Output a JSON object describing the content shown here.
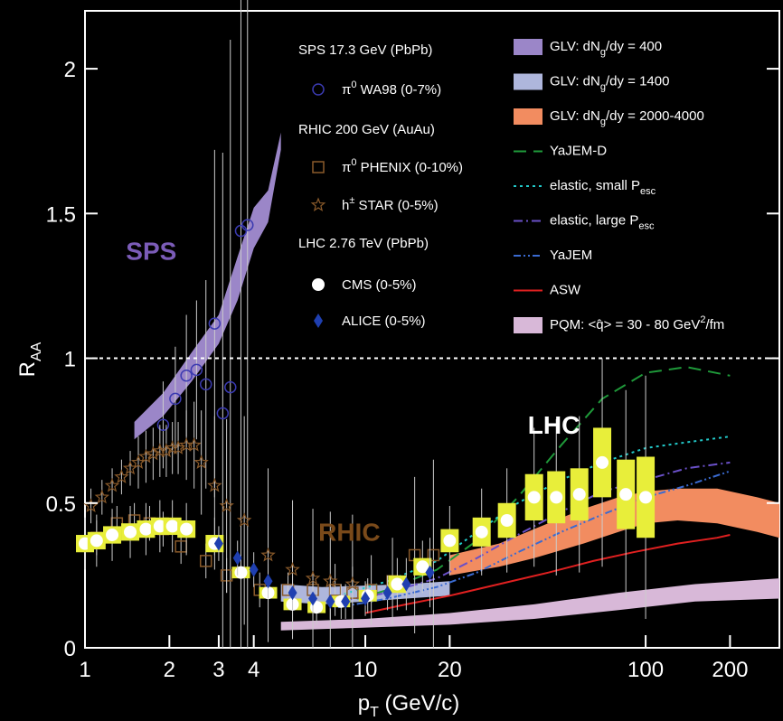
{
  "chart_data": {
    "type": "scatter",
    "xlabel": "p",
    "xlabel_sub": "T",
    "xlabel_unit": " (GeV/c)",
    "ylabel": "R",
    "ylabel_sub": "AA",
    "x_scale": "log",
    "xlim": [
      1,
      300
    ],
    "ylim": [
      0,
      2.2
    ],
    "x_ticks": [
      1,
      2,
      3,
      4,
      10,
      20,
      100,
      200
    ],
    "y_ticks": [
      0,
      0.5,
      1,
      1.5,
      2
    ],
    "y_tick_labels": [
      "0",
      "0.5",
      "1",
      "1.5",
      "2"
    ],
    "reference_line": 1,
    "region_labels": {
      "sps": {
        "text": "SPS",
        "color": "#7b5cb8",
        "x": 1.4,
        "y": 1.34
      },
      "rhic": {
        "text": "RHIC",
        "color": "#7a4a1a",
        "x": 6.8,
        "y": 0.37
      },
      "lhc": {
        "text": "LHC",
        "color": "#ffffff",
        "x": 38,
        "y": 0.74
      }
    },
    "legend_left": {
      "headers": [
        "SPS 17.3 GeV (PbPb)",
        "RHIC 200 GeV (AuAu)",
        "LHC 2.76 TeV (PbPb)"
      ],
      "entries": [
        {
          "label": "π",
          "sup": "0",
          "rest": "  WA98 (0-7%)"
        },
        {
          "label": "π",
          "sup": "0",
          "rest": "  PHENIX (0-10%)"
        },
        {
          "label": "h",
          "sup": "±",
          "rest": "  STAR (0-5%)"
        },
        {
          "label": "CMS (0-5%)",
          "sup": "",
          "rest": ""
        },
        {
          "label": "ALICE (0-5%)",
          "sup": "",
          "rest": ""
        }
      ]
    },
    "legend_right": [
      {
        "pre": "GLV: dN",
        "sub": "g",
        "post": "/dy = 400",
        "color": "#9b86c8",
        "kind": "band"
      },
      {
        "pre": "GLV: dN",
        "sub": "g",
        "post": "/dy = 1400",
        "color": "#aeb6dc",
        "kind": "band"
      },
      {
        "pre": "GLV: dN",
        "sub": "g",
        "post": "/dy = 2000-4000",
        "color": "#f28c60",
        "kind": "band"
      },
      {
        "pre": "YaJEM-D",
        "sub": "",
        "post": "",
        "color": "#1f9a3a",
        "kind": "dash"
      },
      {
        "pre": "elastic, small P",
        "sub": "esc",
        "post": "",
        "color": "#22c9c9",
        "kind": "dot"
      },
      {
        "pre": "elastic, large P",
        "sub": "esc",
        "post": "",
        "color": "#6a50c8",
        "kind": "dashdot"
      },
      {
        "pre": "YaJEM",
        "sub": "",
        "post": "",
        "color": "#3a6ad0",
        "kind": "dashdotdot"
      },
      {
        "pre": "ASW",
        "sub": "",
        "post": "",
        "color": "#e02020",
        "kind": "solid"
      },
      {
        "pre": "PQM: <q̂> = 30 - 80 GeV",
        "sub": "",
        "sup": "2",
        "post": "/fm",
        "color": "#d8b8d8",
        "kind": "band"
      }
    ],
    "bands": [
      {
        "name": "GLV: dNg/dy = 400",
        "color": "#9b86c8",
        "x": [
          1.5,
          1.9,
          2.4,
          3.0,
          3.5,
          4.0,
          4.5,
          5.0
        ],
        "y_low": [
          0.72,
          0.8,
          0.92,
          1.05,
          1.2,
          1.38,
          1.47,
          1.72
        ],
        "y_high": [
          0.78,
          0.88,
          1.02,
          1.15,
          1.35,
          1.52,
          1.58,
          1.78
        ]
      },
      {
        "name": "GLV: dNg/dy = 1400",
        "color": "#aeb6dc",
        "x": [
          5.0,
          7,
          10,
          14,
          20
        ],
        "y_low": [
          0.16,
          0.15,
          0.16,
          0.17,
          0.18
        ],
        "y_high": [
          0.22,
          0.21,
          0.215,
          0.22,
          0.23
        ]
      },
      {
        "name": "GLV: dNg/dy = 2000-4000",
        "color": "#f28c60",
        "x": [
          20,
          30,
          40,
          60,
          80,
          100,
          130,
          180,
          250,
          300
        ],
        "y_low": [
          0.25,
          0.28,
          0.31,
          0.36,
          0.4,
          0.43,
          0.44,
          0.43,
          0.4,
          0.38
        ],
        "y_high": [
          0.32,
          0.36,
          0.41,
          0.48,
          0.52,
          0.54,
          0.55,
          0.55,
          0.52,
          0.5
        ]
      },
      {
        "name": "GLV: dNg/dy = 1400 (PQM)",
        "color": "#d8b8d8",
        "x": [
          5.0,
          10,
          20,
          40,
          80,
          150,
          300
        ],
        "y_low": [
          0.06,
          0.07,
          0.08,
          0.1,
          0.13,
          0.16,
          0.17
        ],
        "y_high": [
          0.09,
          0.1,
          0.12,
          0.15,
          0.19,
          0.22,
          0.24
        ]
      }
    ],
    "curves": [
      {
        "name": "YaJEM-D",
        "color": "#1f9a3a",
        "kind": "dash",
        "x": [
          8,
          12,
          18,
          25,
          35,
          50,
          70,
          100,
          140,
          200
        ],
        "y": [
          0.15,
          0.2,
          0.27,
          0.37,
          0.52,
          0.7,
          0.86,
          0.95,
          0.97,
          0.94
        ]
      },
      {
        "name": "elastic, small Pesc",
        "color": "#22c9c9",
        "kind": "dot",
        "x": [
          8,
          12,
          18,
          25,
          35,
          50,
          70,
          100,
          140,
          200
        ],
        "y": [
          0.18,
          0.23,
          0.3,
          0.4,
          0.5,
          0.58,
          0.64,
          0.69,
          0.71,
          0.73
        ]
      },
      {
        "name": "elastic, large Pesc",
        "color": "#6a50c8",
        "kind": "dashdot",
        "x": [
          8,
          12,
          18,
          25,
          35,
          50,
          70,
          100,
          140,
          200
        ],
        "y": [
          0.16,
          0.19,
          0.24,
          0.31,
          0.39,
          0.47,
          0.54,
          0.58,
          0.62,
          0.64
        ]
      },
      {
        "name": "YaJEM",
        "color": "#3a6ad0",
        "kind": "dashdotdot",
        "x": [
          8,
          12,
          18,
          25,
          35,
          50,
          70,
          100,
          140,
          200
        ],
        "y": [
          0.14,
          0.17,
          0.21,
          0.26,
          0.33,
          0.4,
          0.46,
          0.52,
          0.56,
          0.61
        ]
      },
      {
        "name": "ASW",
        "color": "#e02020",
        "kind": "solid",
        "x": [
          10,
          14,
          20,
          30,
          45,
          65,
          90,
          130,
          180,
          200
        ],
        "y": [
          0.12,
          0.15,
          0.18,
          0.22,
          0.26,
          0.3,
          0.33,
          0.36,
          0.38,
          0.39
        ]
      }
    ],
    "series": [
      {
        "name": "π0 WA98 (0-7%)",
        "marker": "open-circle",
        "color": "#3a3ab0",
        "points": [
          [
            1.9,
            0.77,
            0.05
          ],
          [
            2.1,
            0.86,
            0.06
          ],
          [
            2.3,
            0.94,
            0.07
          ],
          [
            2.5,
            0.96,
            0.08
          ],
          [
            2.7,
            0.91,
            0.12
          ],
          [
            2.9,
            1.12,
            0.2
          ],
          [
            3.1,
            0.81,
            0.3
          ],
          [
            3.3,
            0.9,
            0.4
          ],
          [
            3.6,
            1.44,
            0.6
          ],
          [
            3.8,
            1.46,
            0.7
          ]
        ]
      },
      {
        "name": "π0 PHENIX (0-10%)",
        "marker": "open-square",
        "color": "#8a5a2a",
        "points": [
          [
            1.1,
            0.38,
            0.02
          ],
          [
            1.3,
            0.43,
            0.02
          ],
          [
            1.5,
            0.44,
            0.02
          ],
          [
            1.7,
            0.43,
            0.02
          ],
          [
            1.9,
            0.41,
            0.02
          ],
          [
            2.2,
            0.35,
            0.02
          ],
          [
            2.7,
            0.3,
            0.02
          ],
          [
            3.2,
            0.25,
            0.02
          ],
          [
            4.2,
            0.2,
            0.02
          ],
          [
            5.3,
            0.2,
            0.02
          ],
          [
            6.5,
            0.2,
            0.02
          ],
          [
            7.8,
            0.2,
            0.03
          ],
          [
            9,
            0.19,
            0.03
          ],
          [
            10.5,
            0.2,
            0.04
          ],
          [
            12.5,
            0.23,
            0.05
          ],
          [
            15,
            0.32,
            0.09
          ],
          [
            17.5,
            0.32,
            0.11
          ]
        ]
      },
      {
        "name": "h± STAR (0-5%)",
        "marker": "open-star",
        "color": "#8a5a2a",
        "points": [
          [
            1.05,
            0.49,
            0.02
          ],
          [
            1.15,
            0.52,
            0.02
          ],
          [
            1.25,
            0.56,
            0.02
          ],
          [
            1.35,
            0.59,
            0.02
          ],
          [
            1.45,
            0.62,
            0.02
          ],
          [
            1.55,
            0.64,
            0.03
          ],
          [
            1.65,
            0.66,
            0.03
          ],
          [
            1.75,
            0.67,
            0.03
          ],
          [
            1.85,
            0.68,
            0.03
          ],
          [
            1.95,
            0.68,
            0.03
          ],
          [
            2.05,
            0.69,
            0.03
          ],
          [
            2.15,
            0.69,
            0.03
          ],
          [
            2.3,
            0.7,
            0.04
          ],
          [
            2.45,
            0.7,
            0.05
          ],
          [
            2.6,
            0.64,
            0.06
          ],
          [
            2.9,
            0.56,
            0.08
          ],
          [
            3.2,
            0.49,
            0.1
          ],
          [
            3.7,
            0.44,
            0.12
          ],
          [
            4.5,
            0.32,
            0.1
          ],
          [
            5.5,
            0.27,
            0.08
          ],
          [
            6.5,
            0.24,
            0.08
          ],
          [
            7.5,
            0.23,
            0.08
          ],
          [
            9,
            0.22,
            0.08
          ]
        ]
      },
      {
        "name": "CMS (0-5%)",
        "marker": "filled-circle",
        "color": "#ffffff",
        "points": [
          [
            1.0,
            0.36,
            0.03
          ],
          [
            1.1,
            0.37,
            0.03
          ],
          [
            1.25,
            0.39,
            0.03
          ],
          [
            1.45,
            0.4,
            0.03
          ],
          [
            1.65,
            0.41,
            0.03
          ],
          [
            1.85,
            0.42,
            0.03
          ],
          [
            2.05,
            0.42,
            0.03
          ],
          [
            2.3,
            0.41,
            0.03
          ],
          [
            2.9,
            0.36,
            0.03
          ],
          [
            3.6,
            0.26,
            0.02
          ],
          [
            4.5,
            0.19,
            0.02
          ],
          [
            5.5,
            0.15,
            0.02
          ],
          [
            6.7,
            0.14,
            0.02
          ],
          [
            8.2,
            0.16,
            0.02
          ],
          [
            10.2,
            0.18,
            0.02
          ],
          [
            13,
            0.22,
            0.03
          ],
          [
            16,
            0.28,
            0.03
          ],
          [
            20,
            0.37,
            0.04
          ],
          [
            26,
            0.4,
            0.05
          ],
          [
            32,
            0.44,
            0.06
          ],
          [
            40,
            0.52,
            0.08
          ],
          [
            48,
            0.52,
            0.09
          ],
          [
            58,
            0.53,
            0.09
          ],
          [
            70,
            0.64,
            0.12
          ],
          [
            85,
            0.53,
            0.12
          ],
          [
            100,
            0.52,
            0.14
          ]
        ]
      },
      {
        "name": "ALICE (0-5%)",
        "marker": "filled-diamond",
        "color": "#1f3fb0",
        "points": [
          [
            3.0,
            0.36,
            0.02
          ],
          [
            3.5,
            0.31,
            0.02
          ],
          [
            4.0,
            0.27,
            0.02
          ],
          [
            4.5,
            0.23,
            0.02
          ],
          [
            5.5,
            0.19,
            0.02
          ],
          [
            6.5,
            0.17,
            0.02
          ],
          [
            7.5,
            0.16,
            0.02
          ],
          [
            8.5,
            0.16,
            0.02
          ],
          [
            10,
            0.17,
            0.02
          ],
          [
            12,
            0.19,
            0.02
          ],
          [
            14,
            0.22,
            0.03
          ],
          [
            17,
            0.26,
            0.04
          ]
        ]
      }
    ]
  }
}
